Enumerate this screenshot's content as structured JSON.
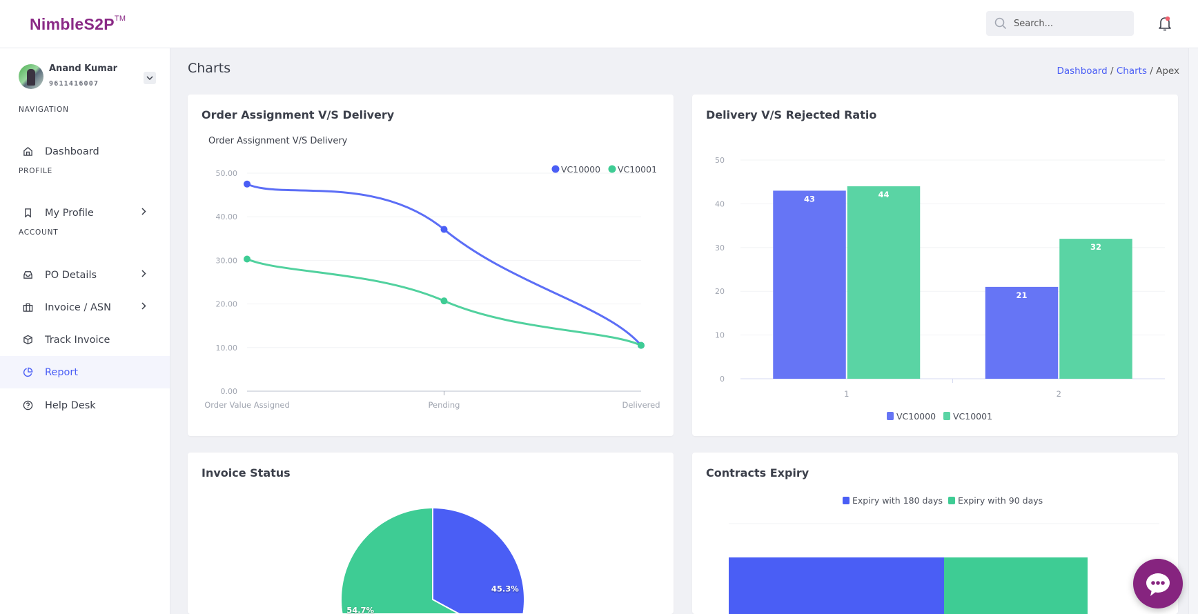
{
  "brand": {
    "logo_text": "NimbleS2P",
    "trademark": "TM"
  },
  "header": {
    "search_placeholder": "Search...",
    "notification_has_badge": true
  },
  "user": {
    "name": "Anand Kumar",
    "phone": "9611416007"
  },
  "sidebar": {
    "sections": [
      "NAVIGATION",
      "PROFILE",
      "ACCOUNT"
    ],
    "items": [
      {
        "label": "Dashboard",
        "icon": "home-icon"
      },
      {
        "label": "My Profile",
        "icon": "bookmark-icon",
        "has_submenu": true
      },
      {
        "label": "PO Details",
        "icon": "inbox-icon",
        "has_submenu": true
      },
      {
        "label": "Invoice / ASN",
        "icon": "briefcase-icon",
        "has_submenu": true
      },
      {
        "label": "Track Invoice",
        "icon": "package-icon"
      },
      {
        "label": "Report",
        "icon": "pie-chart-icon",
        "active": true
      },
      {
        "label": "Help Desk",
        "icon": "help-circle-icon"
      }
    ]
  },
  "page": {
    "title": "Charts",
    "breadcrumb": [
      {
        "label": "Dashboard"
      },
      {
        "label": "Charts"
      },
      {
        "label": "Apex"
      }
    ]
  },
  "colors": {
    "blue": "#4a5ef5",
    "green": "#3ecc94",
    "brand": "#86247f",
    "active_bg": "#f4f5fd"
  },
  "cards": {
    "order": {
      "title": "Order Assignment V/S Delivery"
    },
    "delivery": {
      "title": "Delivery V/S Rejected Ratio"
    },
    "invoice": {
      "title": "Invoice Status"
    },
    "contracts": {
      "title": "Contracts Expiry"
    }
  },
  "chart_data": [
    {
      "type": "line",
      "title": "Order Assignment V/S Delivery",
      "categories": [
        "Order Value Assigned",
        "Pending",
        "Delivered"
      ],
      "series": [
        {
          "name": "VC10000",
          "color": "#4a5ef5",
          "values": [
            47.5,
            37.1,
            10.5
          ]
        },
        {
          "name": "VC10001",
          "color": "#3ecc94",
          "values": [
            30.3,
            20.7,
            10.5
          ]
        }
      ],
      "ylim": [
        0,
        50
      ],
      "yticks": [
        "0.00",
        "10.00",
        "20.00",
        "30.00",
        "40.00",
        "50.00"
      ],
      "curve": "smooth",
      "legend": "top-right",
      "grid": true
    },
    {
      "type": "bar",
      "categories": [
        "1",
        "2"
      ],
      "series": [
        {
          "name": "VC10000",
          "color": "#6675f5",
          "values": [
            43,
            21
          ]
        },
        {
          "name": "VC10001",
          "color": "#5ad4a4",
          "values": [
            44,
            32
          ]
        }
      ],
      "ylim": [
        0,
        50
      ],
      "yticks": [
        "0",
        "10",
        "20",
        "30",
        "40",
        "50"
      ],
      "data_labels": true,
      "legend": "bottom",
      "grid": true
    },
    {
      "type": "pie",
      "slices": [
        {
          "label": "45.3%",
          "value": 45.3,
          "color": "#4a5ef5"
        },
        {
          "label": "54.7%",
          "value": 54.7,
          "color": "#3ecc94"
        }
      ]
    },
    {
      "type": "bar",
      "orientation": "horizontal",
      "stacked": true,
      "series": [
        {
          "name": "Expiry with 180 days",
          "color": "#4a5ef5",
          "values": [
            3
          ]
        },
        {
          "name": "Expiry with 90 days",
          "color": "#3ecc94",
          "values": [
            2
          ]
        }
      ],
      "xlim": [
        0,
        6
      ],
      "legend": "top"
    }
  ]
}
